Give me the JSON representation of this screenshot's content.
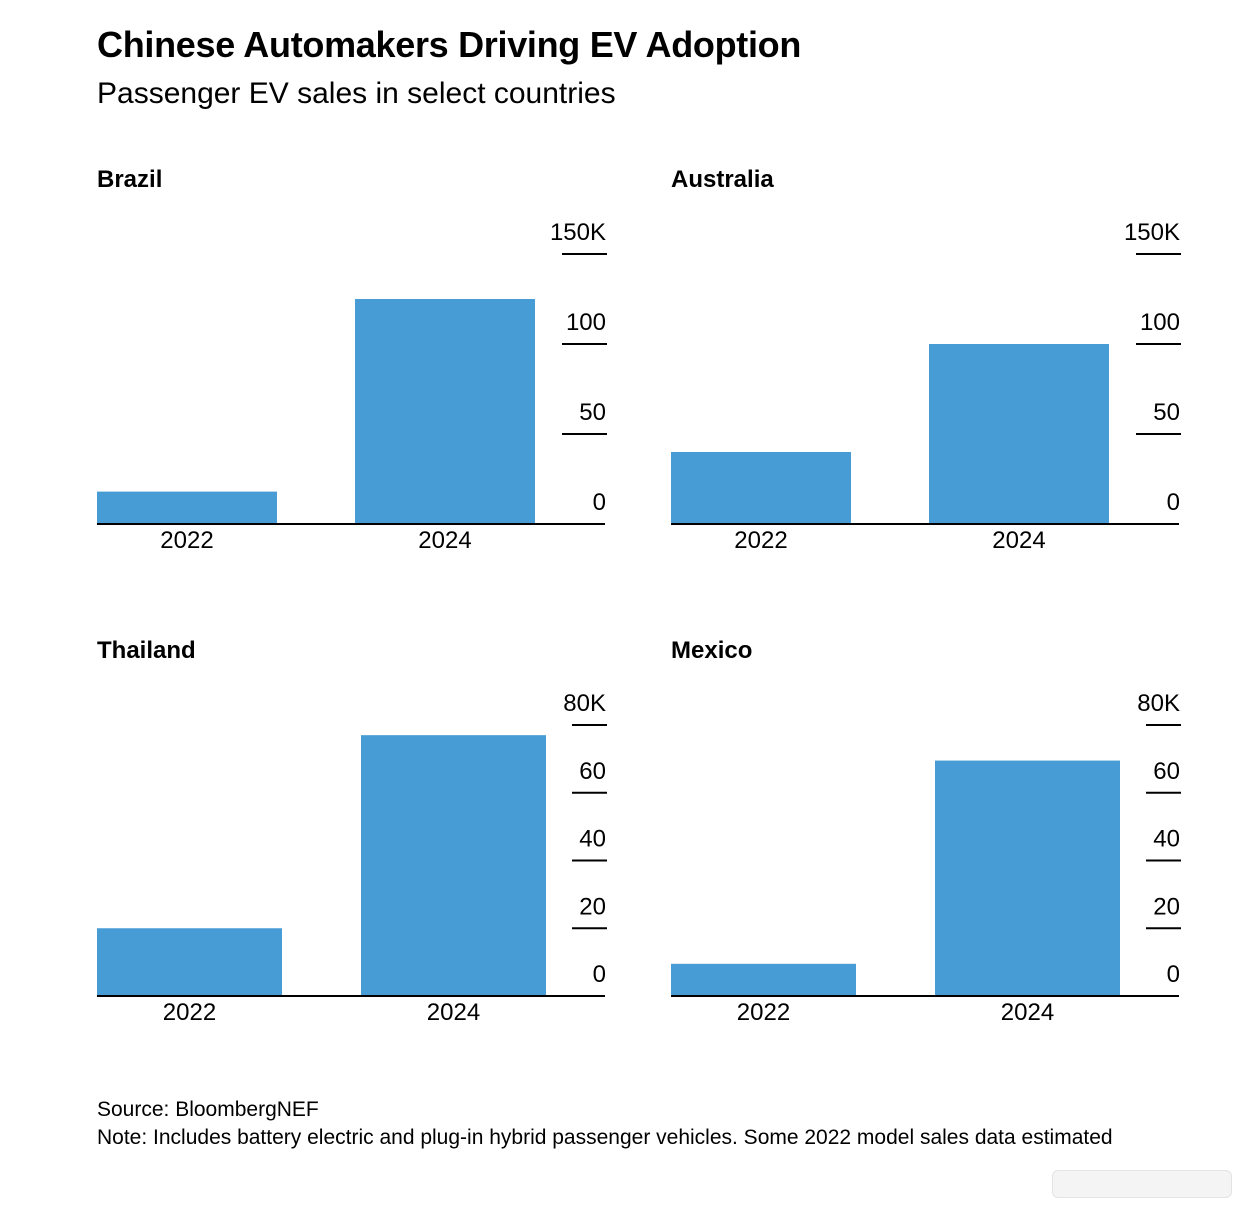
{
  "header": {
    "title": "Chinese Automakers Driving EV Adoption",
    "subtitle": "Passenger EV sales in select countries"
  },
  "colors": {
    "bar": "#479cd6",
    "axis": "#000000",
    "text": "#000000"
  },
  "chart_data": [
    {
      "type": "bar",
      "title": "Brazil",
      "categories": [
        "2022",
        "2024"
      ],
      "values": [
        18000,
        125000
      ],
      "ylim": [
        0,
        150000
      ],
      "yticks": [
        0,
        50,
        100,
        150
      ],
      "ytick_labels": [
        "0",
        "50",
        "100",
        "150K"
      ],
      "xlabel": "",
      "ylabel": ""
    },
    {
      "type": "bar",
      "title": "Australia",
      "categories": [
        "2022",
        "2024"
      ],
      "values": [
        40000,
        100000
      ],
      "ylim": [
        0,
        150000
      ],
      "yticks": [
        0,
        50,
        100,
        150
      ],
      "ytick_labels": [
        "0",
        "50",
        "100",
        "150K"
      ],
      "xlabel": "",
      "ylabel": ""
    },
    {
      "type": "bar",
      "title": "Thailand",
      "categories": [
        "2022",
        "2024"
      ],
      "values": [
        20000,
        77000
      ],
      "ylim": [
        0,
        80000
      ],
      "yticks": [
        0,
        20,
        40,
        60,
        80
      ],
      "ytick_labels": [
        "0",
        "20",
        "40",
        "60",
        "80K"
      ],
      "xlabel": "",
      "ylabel": ""
    },
    {
      "type": "bar",
      "title": "Mexico",
      "categories": [
        "2022",
        "2024"
      ],
      "values": [
        9500,
        69500
      ],
      "ylim": [
        0,
        80000
      ],
      "yticks": [
        0,
        20,
        40,
        60,
        80
      ],
      "ytick_labels": [
        "0",
        "20",
        "40",
        "60",
        "80K"
      ],
      "xlabel": "",
      "ylabel": ""
    }
  ],
  "footer": {
    "source": "Source: BloombergNEF",
    "note": "Note: Includes battery electric and plug-in hybrid passenger vehicles. Some 2022 model sales data estimated"
  }
}
